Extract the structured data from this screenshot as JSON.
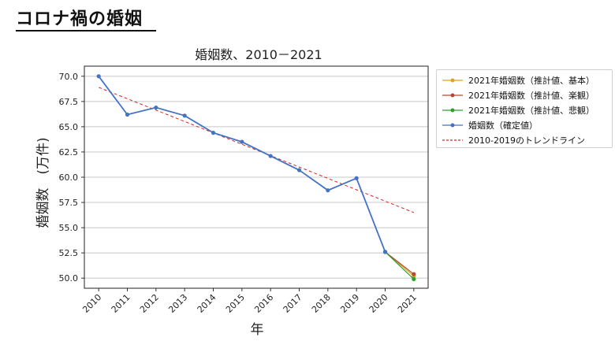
{
  "slide": {
    "title": "コロナ禍の婚姻"
  },
  "chart_data": {
    "type": "line",
    "title": "婚姻数、2010－2021",
    "xlabel": "年",
    "ylabel": "婚姻数　(万件)",
    "ylim": [
      49.0,
      71.0
    ],
    "yticks": [
      "50.0",
      "52.5",
      "55.0",
      "57.5",
      "60.0",
      "62.5",
      "65.0",
      "67.5",
      "70.0"
    ],
    "categories": [
      "2010",
      "2011",
      "2012",
      "2013",
      "2014",
      "2015",
      "2016",
      "2017",
      "2018",
      "2019",
      "2020",
      "2021"
    ],
    "grid": "horizontal",
    "legend_position": "right",
    "series": [
      {
        "name": "2021年婚姻数（推計値、基本）",
        "color": "#e0a020",
        "x": [
          "2020",
          "2021"
        ],
        "values": [
          52.6,
          50.2
        ]
      },
      {
        "name": "2021年婚姻数（推計値、楽観）",
        "color": "#b04a3a",
        "x": [
          "2020",
          "2021"
        ],
        "values": [
          52.6,
          50.4
        ]
      },
      {
        "name": "2021年婚姻数（推計値、悲観）",
        "color": "#2ca02c",
        "x": [
          "2020",
          "2021"
        ],
        "values": [
          52.6,
          49.9
        ]
      },
      {
        "name": "婚姻数（確定値）",
        "color": "#4472c4",
        "x": [
          "2010",
          "2011",
          "2012",
          "2013",
          "2014",
          "2015",
          "2016",
          "2017",
          "2018",
          "2019",
          "2020"
        ],
        "values": [
          70.0,
          66.2,
          66.9,
          66.1,
          64.4,
          63.5,
          62.1,
          60.7,
          58.7,
          59.9,
          52.6
        ]
      },
      {
        "name": "2010-2019のトレンドライン",
        "color": "#d62728",
        "style": "dashed",
        "x": [
          "2010",
          "2021"
        ],
        "values": [
          68.9,
          56.5
        ]
      }
    ]
  }
}
